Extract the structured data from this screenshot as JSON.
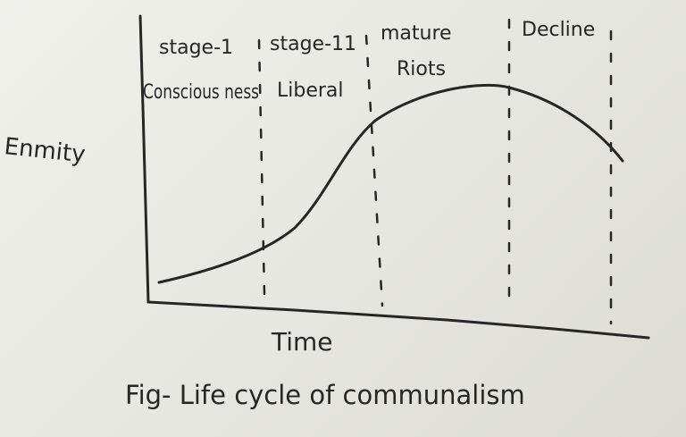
{
  "diagram": {
    "caption": "Fig- Life cycle of communalism",
    "y_label": "Enmity",
    "x_label": "Time",
    "stages": [
      {
        "label": "stage-1",
        "sublabel": "Conscious ness"
      },
      {
        "label": "stage-11",
        "sublabel": "Liberal"
      },
      {
        "label": "mature",
        "sublabel": "Riots"
      },
      {
        "label": "Decline",
        "sublabel": ""
      }
    ]
  }
}
